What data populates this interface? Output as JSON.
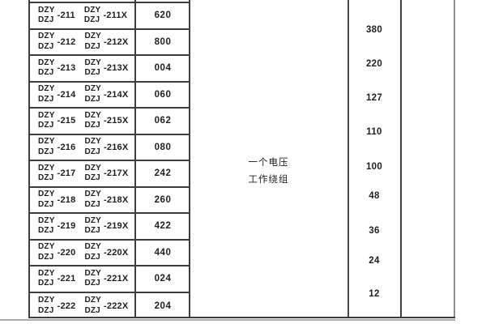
{
  "document": {
    "brand_top": "DZY",
    "brand_bottom": "DZJ",
    "rows": [
      {
        "model": "-211",
        "model_x": "-211X",
        "code": "620"
      },
      {
        "model": "-212",
        "model_x": "-212X",
        "code": "800"
      },
      {
        "model": "-213",
        "model_x": "-213X",
        "code": "004"
      },
      {
        "model": "-214",
        "model_x": "-214X",
        "code": "060"
      },
      {
        "model": "-215",
        "model_x": "-215X",
        "code": "062"
      },
      {
        "model": "-216",
        "model_x": "-216X",
        "code": "080"
      },
      {
        "model": "-217",
        "model_x": "-217X",
        "code": "242"
      },
      {
        "model": "-218",
        "model_x": "-218X",
        "code": "260"
      },
      {
        "model": "-219",
        "model_x": "-219X",
        "code": "422"
      },
      {
        "model": "-220",
        "model_x": "-220X",
        "code": "440"
      },
      {
        "model": "-221",
        "model_x": "-221X",
        "code": "024"
      },
      {
        "model": "-222",
        "model_x": "-222X",
        "code": "204"
      }
    ],
    "winding_label": {
      "line1": "一个电压",
      "line2": "工作绕组"
    },
    "voltages": [
      "380",
      "220",
      "127",
      "110",
      "100",
      "48",
      "36",
      "24",
      "12"
    ],
    "colors": {
      "background": "#ffffff",
      "grid_line_dark": "#3e3e3e",
      "grid_line_light": "#8f8f8f",
      "page_edge_line": "#ababab",
      "text": "#1e1e1e"
    }
  }
}
